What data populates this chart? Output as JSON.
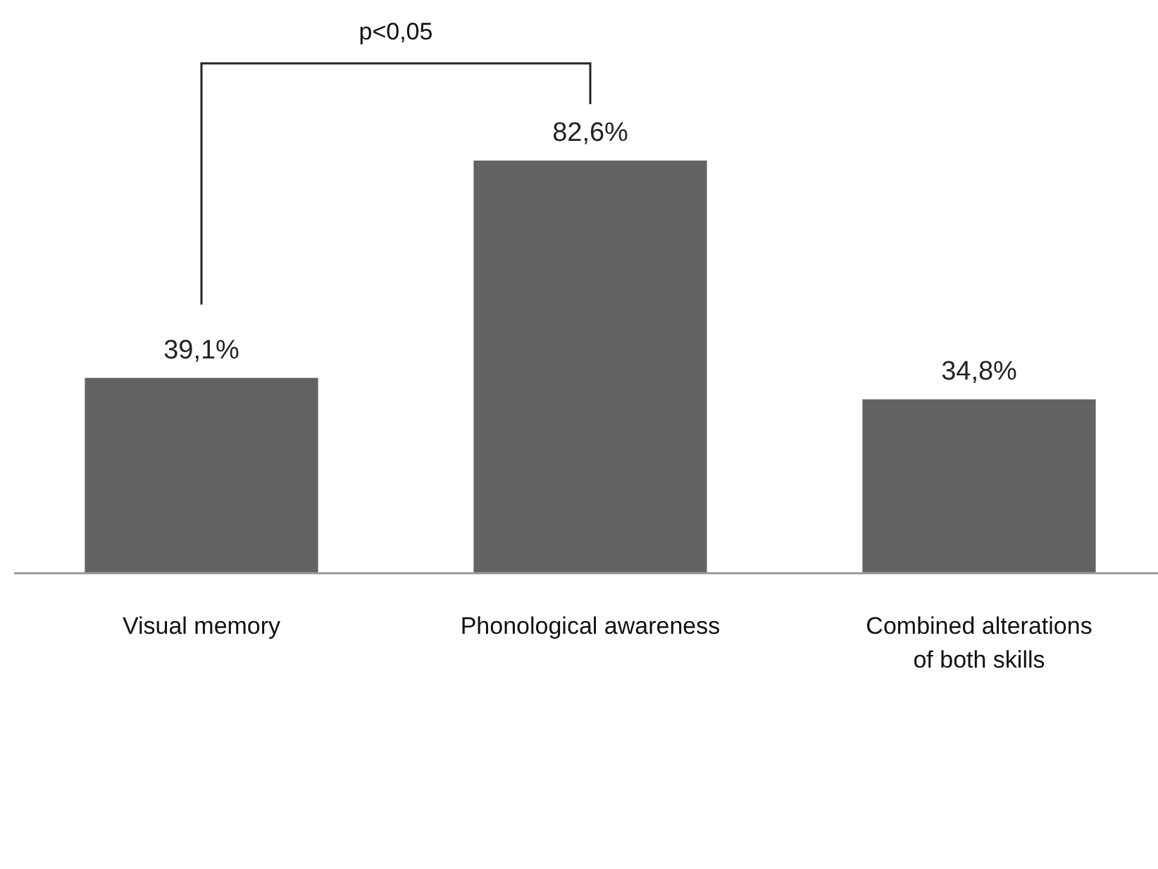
{
  "chart_data": {
    "type": "bar",
    "categories": [
      "Visual memory",
      "Phonological awareness",
      "Combined alterations of both skills"
    ],
    "values": [
      39.1,
      82.6,
      34.8
    ],
    "value_labels": [
      "39,1%",
      "82,6%",
      "34,8%"
    ],
    "color": "#636363",
    "tick_labels": "x",
    "annotations": [
      "p<0,05"
    ]
  }
}
